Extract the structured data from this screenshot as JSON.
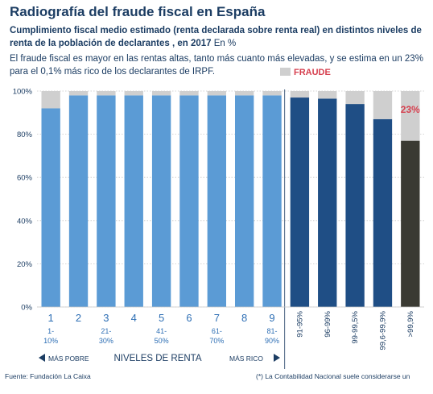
{
  "header": {
    "title": "Radiografía del fraude fiscal en España",
    "subtitle": "Cumplimiento fiscal medio estimado (renta declarada sobre renta real) en distintos niveles de renta de la población de declarantes , en 2017",
    "unit": "En %",
    "description": "El fraude fiscal es mayor en las rentas altas, tanto más cuanto más elevadas, y se estima en un 23% para el 0,1% más rico de los declarantes de IRPF."
  },
  "legend": {
    "label": "FRAUDE",
    "color": "#cfcfcf"
  },
  "axis_labels": {
    "poorer": "MÁS POBRE",
    "income_levels": "NIVELES DE RENTA",
    "richer": "MÁS RICO"
  },
  "footer": {
    "source": "Fuente: Fundación La Caixa",
    "note": "(*) La Contabilidad Nacional suele considerarse un"
  },
  "colors": {
    "light_blue": "#5b9bd5",
    "dark_blue": "#1f4e85",
    "top_bar": "#3a3a33",
    "fraud": "#cfcfcf",
    "fraud_label": "#d6404f"
  },
  "chart_data": {
    "type": "bar",
    "stacked": true,
    "ylim": [
      0,
      100
    ],
    "yticks": [
      0,
      20,
      40,
      60,
      80,
      100
    ],
    "ytick_labels": [
      "0%",
      "20%",
      "40%",
      "60%",
      "80%",
      "100%"
    ],
    "grid": "horizontal",
    "categories": [
      {
        "num": "1",
        "range": [
          "1-",
          "10%"
        ]
      },
      {
        "num": "2",
        "range": []
      },
      {
        "num": "3",
        "range": [
          "21-",
          "30%"
        ]
      },
      {
        "num": "4",
        "range": []
      },
      {
        "num": "5",
        "range": [
          "41-",
          "50%"
        ]
      },
      {
        "num": "6",
        "range": []
      },
      {
        "num": "7",
        "range": [
          "61-",
          "70%"
        ]
      },
      {
        "num": "8",
        "range": []
      },
      {
        "num": "9",
        "range": [
          "81-",
          "90%"
        ]
      },
      {
        "num": "",
        "range": [
          "91-95%"
        ]
      },
      {
        "num": "",
        "range": [
          "96-99%"
        ]
      },
      {
        "num": "",
        "range": [
          "99-99,5%"
        ]
      },
      {
        "num": "",
        "range": [
          "99,6-99,9%"
        ]
      },
      {
        "num": "",
        "range": [
          ">99,9%"
        ]
      }
    ],
    "series": [
      {
        "values": [
          92,
          98,
          98,
          98,
          98,
          98,
          98,
          98,
          98,
          97,
          96.5,
          94,
          87,
          77
        ]
      },
      {
        "name": "FRAUDE",
        "values": [
          8,
          2,
          2,
          2,
          2,
          2,
          2,
          2,
          2,
          3,
          3.5,
          6,
          13,
          23
        ]
      }
    ],
    "bar_colors": [
      "light_blue",
      "light_blue",
      "light_blue",
      "light_blue",
      "light_blue",
      "light_blue",
      "light_blue",
      "light_blue",
      "light_blue",
      "dark_blue",
      "dark_blue",
      "dark_blue",
      "dark_blue",
      "top_bar"
    ],
    "annotations": [
      {
        "category_index": 13,
        "text": "23%"
      }
    ]
  }
}
